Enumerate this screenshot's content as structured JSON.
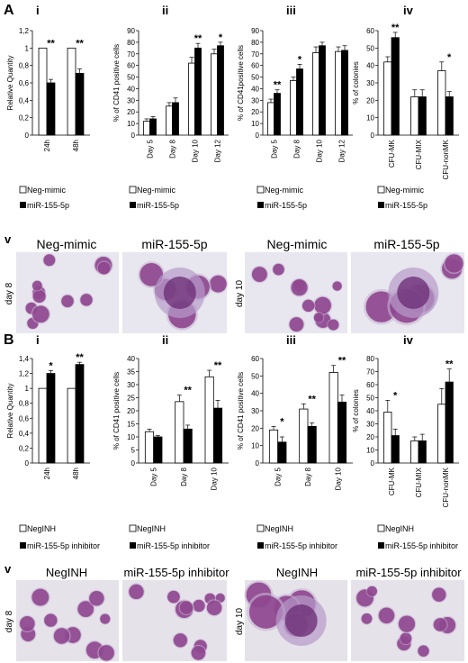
{
  "panel_a": {
    "letter": "A",
    "sub_i": "i",
    "sub_ii": "ii",
    "sub_iii": "iii",
    "sub_iv": "iv",
    "sub_v": "v",
    "legend_1": [
      "Neg-mimic",
      "Neg-mimic",
      "Neg-mimic",
      "Neg-mimic"
    ],
    "legend_2": [
      "miR-155-5p",
      "miR-155-5p",
      "miR-155-5p",
      "miR-155-5p"
    ],
    "img_labels": [
      "Neg-mimic",
      "miR-155-5p",
      "Neg-mimic",
      "miR-155-5p"
    ],
    "day_labels": [
      "day 8",
      "day 10"
    ]
  },
  "panel_b": {
    "letter": "B",
    "sub_i": "i",
    "sub_ii": "ii",
    "sub_iii": "iii",
    "sub_iv": "iv",
    "sub_v": "v",
    "legend_1": [
      "NegINH",
      "NegINH",
      "NegINH",
      "NegINH"
    ],
    "legend_2": [
      "miR-155-5p inhibitor",
      "miR-155-5p inhibitor",
      "miR-155-5p inhibitor",
      "miR-155-5p inhibitor"
    ],
    "img_labels": [
      "NegINH",
      "miR-155-5p inhibitor",
      "NegINH",
      "miR-155-5p inhibitor"
    ],
    "day_labels": [
      "day 8",
      "day 10"
    ]
  },
  "colors": {
    "open": "#ffffff",
    "filled": "#000000",
    "cell": "#8a3d8a",
    "bg_a": "#e8e6ee",
    "bg_b": "#e6e2ea"
  },
  "chart_data": [
    {
      "id": "A-i",
      "type": "bar",
      "ylabel": "Relative Quantity",
      "categories": [
        "24h",
        "48h"
      ],
      "yticks": [
        "0",
        "0,2",
        "0,4",
        "0,6",
        "0,8",
        "1",
        "1,2"
      ],
      "ylim": [
        0,
        1.2
      ],
      "series": [
        {
          "name": "Neg-mimic",
          "values": [
            1,
            1
          ],
          "err": [
            0,
            0
          ]
        },
        {
          "name": "miR-155-5p",
          "values": [
            0.6,
            0.71
          ],
          "err": [
            0.04,
            0.05
          ]
        }
      ],
      "annotations": [
        {
          "cat": 0,
          "text": "**"
        },
        {
          "cat": 1,
          "text": "**"
        }
      ]
    },
    {
      "id": "A-ii",
      "type": "bar",
      "ylabel": "% of CD41 positive cells",
      "categories": [
        "Day 5",
        "Day 8",
        "Day 10",
        "Day 12"
      ],
      "yticks": [
        "0",
        "10",
        "20",
        "30",
        "40",
        "50",
        "60",
        "70",
        "80",
        "90"
      ],
      "ylim": [
        0,
        90
      ],
      "series": [
        {
          "name": "Neg-mimic",
          "values": [
            12,
            25,
            62,
            70
          ],
          "err": [
            2,
            3,
            5,
            4
          ]
        },
        {
          "name": "miR-155-5p",
          "values": [
            14,
            28,
            75,
            77
          ],
          "err": [
            2,
            4,
            4,
            3
          ]
        }
      ],
      "annotations": [
        {
          "cat": 2,
          "text": "**"
        },
        {
          "cat": 3,
          "text": "*"
        }
      ]
    },
    {
      "id": "A-iii",
      "type": "bar",
      "ylabel": "% of CD41positive cells",
      "categories": [
        "Day 5",
        "Day 8",
        "Day 10",
        "Day 12"
      ],
      "yticks": [
        "0",
        "10",
        "20",
        "30",
        "40",
        "50",
        "60",
        "70",
        "80",
        "90"
      ],
      "ylim": [
        0,
        90
      ],
      "series": [
        {
          "name": "Neg-mimic",
          "values": [
            28,
            47,
            71,
            72
          ],
          "err": [
            3,
            3,
            5,
            4
          ]
        },
        {
          "name": "miR-155-5p",
          "values": [
            36,
            57,
            77,
            73
          ],
          "err": [
            3,
            4,
            3,
            4
          ]
        }
      ],
      "annotations": [
        {
          "cat": 0,
          "text": "**"
        },
        {
          "cat": 1,
          "text": "*"
        }
      ]
    },
    {
      "id": "A-iv",
      "type": "bar",
      "ylabel": "% of colonies",
      "categories": [
        "CFU-MK",
        "CFU-MIX",
        "CFU-nonMK"
      ],
      "yticks": [
        "0",
        "10",
        "20",
        "30",
        "40",
        "50",
        "60"
      ],
      "ylim": [
        0,
        60
      ],
      "series": [
        {
          "name": "Neg-mimic",
          "values": [
            42,
            22,
            37
          ],
          "err": [
            3,
            4,
            5
          ]
        },
        {
          "name": "miR-155-5p",
          "values": [
            56,
            22,
            22
          ],
          "err": [
            3,
            4,
            3
          ]
        }
      ],
      "annotations": [
        {
          "cat": 0,
          "text": "**"
        },
        {
          "cat": 2,
          "text": "*"
        }
      ]
    },
    {
      "id": "B-i",
      "type": "bar",
      "ylabel": "Relative Quantity",
      "categories": [
        "24h",
        "48h"
      ],
      "yticks": [
        "0",
        "0,2",
        "0,4",
        "0,6",
        "0,8",
        "1",
        "1,2",
        "1,4"
      ],
      "ylim": [
        0,
        1.4
      ],
      "series": [
        {
          "name": "NegINH",
          "values": [
            1,
            1
          ],
          "err": [
            0,
            0
          ]
        },
        {
          "name": "miR-155-5p inhibitor",
          "values": [
            1.2,
            1.32
          ],
          "err": [
            0.04,
            0.03
          ]
        }
      ],
      "annotations": [
        {
          "cat": 0,
          "text": "*"
        },
        {
          "cat": 1,
          "text": "**"
        }
      ]
    },
    {
      "id": "B-ii",
      "type": "bar",
      "ylabel": "% of CD41 positive cells",
      "categories": [
        "Day 5",
        "Day 8",
        "Day 10"
      ],
      "yticks": [
        "0",
        "5",
        "10",
        "15",
        "20",
        "25",
        "30",
        "35",
        "40"
      ],
      "ylim": [
        0,
        40
      ],
      "series": [
        {
          "name": "NegINH",
          "values": [
            12,
            23.5,
            33
          ],
          "err": [
            1,
            2.5,
            2.5
          ]
        },
        {
          "name": "miR-155-5p inhibitor",
          "values": [
            10,
            13,
            21
          ],
          "err": [
            0.5,
            1.5,
            3
          ]
        }
      ],
      "annotations": [
        {
          "cat": 1,
          "text": "**"
        },
        {
          "cat": 2,
          "text": "**"
        }
      ]
    },
    {
      "id": "B-iii",
      "type": "bar",
      "ylabel": "% of CD41 positive cells",
      "categories": [
        "Day 5",
        "Day 8",
        "Day 10"
      ],
      "yticks": [
        "0",
        "10",
        "20",
        "30",
        "40",
        "50",
        "60"
      ],
      "ylim": [
        0,
        60
      ],
      "series": [
        {
          "name": "NegINH",
          "values": [
            19,
            31,
            52
          ],
          "err": [
            2,
            3,
            4
          ]
        },
        {
          "name": "miR-155-5p inhibitor",
          "values": [
            12,
            21,
            35
          ],
          "err": [
            3,
            2,
            4
          ]
        }
      ],
      "annotations": [
        {
          "cat": 0,
          "text": "*"
        },
        {
          "cat": 1,
          "text": "**"
        },
        {
          "cat": 2,
          "text": "**"
        }
      ]
    },
    {
      "id": "B-iv",
      "type": "bar",
      "ylabel": "% of colonies",
      "categories": [
        "CFU-MK",
        "CFU-MIX",
        "CFU-nonMK"
      ],
      "yticks": [
        "0",
        "10",
        "20",
        "30",
        "40",
        "50",
        "60",
        "70",
        "80"
      ],
      "ylim": [
        0,
        80
      ],
      "series": [
        {
          "name": "NegINH",
          "values": [
            39,
            17,
            45
          ],
          "err": [
            9,
            3,
            12
          ]
        },
        {
          "name": "miR-155-5p inhibitor",
          "values": [
            21,
            17,
            62
          ],
          "err": [
            5,
            5,
            10
          ]
        }
      ],
      "annotations": [
        {
          "cat": 0,
          "text": "*"
        },
        {
          "cat": 2,
          "text": "**"
        }
      ]
    }
  ]
}
